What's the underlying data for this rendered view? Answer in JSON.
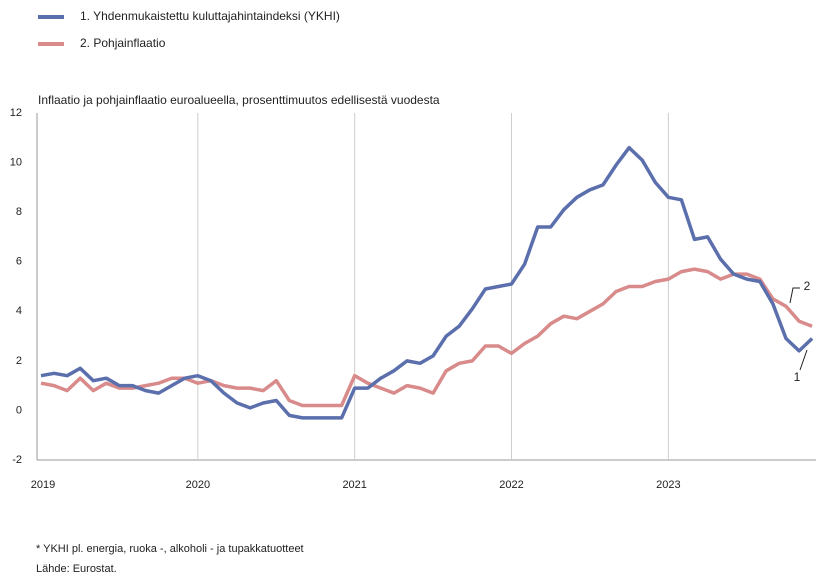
{
  "chart_data": {
    "type": "line",
    "title": "Inflaatio ja pohjainflaatio euroalueella, prosenttimuutos edellisestä vuodesta",
    "categories": [
      "2019",
      null,
      null,
      null,
      null,
      null,
      null,
      null,
      null,
      null,
      null,
      null,
      "2020",
      null,
      null,
      null,
      null,
      null,
      null,
      null,
      null,
      null,
      null,
      null,
      "2021",
      null,
      null,
      null,
      null,
      null,
      null,
      null,
      null,
      null,
      null,
      null,
      "2022",
      null,
      null,
      null,
      null,
      null,
      null,
      null,
      null,
      null,
      null,
      null,
      "2023",
      null,
      null,
      null,
      null,
      null,
      null,
      null,
      null,
      null,
      null,
      null
    ],
    "series": [
      {
        "name": "1. Yhdenmukaistettu kuluttajahintaindeksi (YKHI)",
        "color": "#5b6fad",
        "values": [
          1.4,
          1.5,
          1.4,
          1.7,
          1.2,
          1.3,
          1.0,
          1.0,
          0.8,
          0.7,
          1.0,
          1.3,
          1.4,
          1.2,
          0.7,
          0.3,
          0.1,
          0.3,
          0.4,
          -0.2,
          -0.3,
          -0.3,
          -0.3,
          -0.3,
          0.9,
          0.9,
          1.3,
          1.6,
          2.0,
          1.9,
          2.2,
          3.0,
          3.4,
          4.1,
          4.9,
          5.0,
          5.1,
          5.9,
          7.4,
          7.4,
          8.1,
          8.6,
          8.9,
          9.1,
          9.9,
          10.6,
          10.1,
          9.2,
          8.6,
          8.5,
          6.9,
          7.0,
          6.1,
          5.5,
          5.3,
          5.2,
          4.3,
          2.9,
          2.4,
          2.9
        ]
      },
      {
        "name": "2. Pohjainflaatio",
        "color": "#d98a8a",
        "values": [
          1.1,
          1.0,
          0.8,
          1.3,
          0.8,
          1.1,
          0.9,
          0.9,
          1.0,
          1.1,
          1.3,
          1.3,
          1.1,
          1.2,
          1.0,
          0.9,
          0.9,
          0.8,
          1.2,
          0.4,
          0.2,
          0.2,
          0.2,
          0.2,
          1.4,
          1.1,
          0.9,
          0.7,
          1.0,
          0.9,
          0.7,
          1.6,
          1.9,
          2.0,
          2.6,
          2.6,
          2.3,
          2.7,
          3.0,
          3.5,
          3.8,
          3.7,
          4.0,
          4.3,
          4.8,
          5.0,
          5.0,
          5.2,
          5.3,
          5.6,
          5.7,
          5.6,
          5.3,
          5.5,
          5.5,
          5.3,
          4.5,
          4.2,
          3.6,
          3.4
        ]
      }
    ],
    "annotations": [
      "1",
      "2"
    ],
    "ylim": [
      -2,
      12
    ],
    "yticks": [
      -2,
      0,
      2,
      4,
      6,
      8,
      10,
      12
    ],
    "grid": true,
    "footnotes": [
      "* YKHI pl. energia, ruoka -, alkoholi - ja tupakkatuotteet",
      "Lähde: Eurostat."
    ]
  }
}
